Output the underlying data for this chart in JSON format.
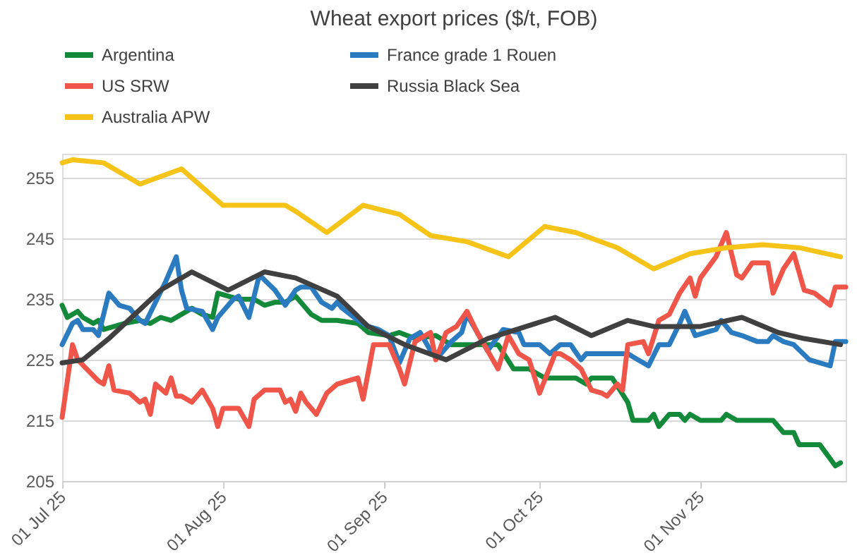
{
  "chart_data": {
    "type": "line",
    "title": "Wheat export prices ($/t, FOB)",
    "legend": "top",
    "grid": "y",
    "marker": "none",
    "line_style": "solid",
    "xlim": [
      "2025-07-01",
      "2025-11-29"
    ],
    "xticks": [
      {
        "value": "2025-07-01",
        "label": "01 Jul 25"
      },
      {
        "value": "2025-08-01",
        "label": "01 Aug 25"
      },
      {
        "value": "2025-09-01",
        "label": "01 Sep 25"
      },
      {
        "value": "2025-10-01",
        "label": "01 Oct 25"
      },
      {
        "value": "2025-11-01",
        "label": "01 Nov 25"
      }
    ],
    "ylim": [
      205,
      259
    ],
    "yticks": [
      205,
      215,
      225,
      235,
      245,
      255
    ],
    "series": [
      {
        "name": "Argentina",
        "color": "#13893a",
        "x": [
          "2025-07-01",
          "2025-07-02",
          "2025-07-03",
          "2025-07-04",
          "2025-07-05",
          "2025-07-07",
          "2025-07-08",
          "2025-07-09",
          "2025-07-11",
          "2025-07-13",
          "2025-07-16",
          "2025-07-18",
          "2025-07-20",
          "2025-07-22",
          "2025-07-23",
          "2025-07-26",
          "2025-07-28",
          "2025-07-30",
          "2025-07-31",
          "2025-08-02",
          "2025-08-04",
          "2025-08-07",
          "2025-08-09",
          "2025-08-11",
          "2025-08-13",
          "2025-08-15",
          "2025-08-18",
          "2025-08-20",
          "2025-08-23",
          "2025-08-27",
          "2025-08-29",
          "2025-09-02",
          "2025-09-04",
          "2025-09-07",
          "2025-09-11",
          "2025-09-14",
          "2025-09-16",
          "2025-09-17",
          "2025-09-20",
          "2025-09-23",
          "2025-09-26",
          "2025-09-29",
          "2025-10-02",
          "2025-10-06",
          "2025-10-08",
          "2025-10-10",
          "2025-10-11",
          "2025-10-15",
          "2025-10-18",
          "2025-10-19",
          "2025-10-22",
          "2025-10-23",
          "2025-10-24",
          "2025-10-26",
          "2025-10-28",
          "2025-10-29",
          "2025-10-30",
          "2025-11-01",
          "2025-11-05",
          "2025-11-06",
          "2025-11-08",
          "2025-11-15",
          "2025-11-17",
          "2025-11-19",
          "2025-11-20",
          "2025-11-24",
          "2025-11-27",
          "2025-11-28"
        ],
        "values": [
          234,
          232,
          232.5,
          233,
          232,
          231,
          231.5,
          230,
          230.5,
          231,
          231.5,
          231,
          232,
          231.5,
          232,
          233.5,
          232.5,
          232,
          236,
          235.5,
          235,
          235,
          234,
          234.5,
          234.5,
          235.5,
          232.5,
          231.5,
          231.5,
          231,
          229.5,
          229,
          229.5,
          228.5,
          229,
          227.5,
          227.5,
          227.5,
          227.5,
          227.5,
          223.5,
          223.5,
          222,
          222,
          222,
          221,
          222,
          222,
          218,
          215,
          215,
          216,
          214,
          216,
          216,
          215,
          216,
          215,
          215,
          216,
          215,
          215,
          213,
          213,
          211,
          211,
          207.5,
          208
        ]
      },
      {
        "name": "France grade 1 Rouen",
        "color": "#2b7bc0",
        "x": [
          "2025-07-01",
          "2025-07-03",
          "2025-07-04",
          "2025-07-05",
          "2025-07-07",
          "2025-07-08",
          "2025-07-10",
          "2025-07-12",
          "2025-07-14",
          "2025-07-16",
          "2025-07-17",
          "2025-07-19",
          "2025-07-21",
          "2025-07-23",
          "2025-07-24",
          "2025-07-25",
          "2025-07-28",
          "2025-07-30",
          "2025-07-31",
          "2025-08-03",
          "2025-08-04",
          "2025-08-06",
          "2025-08-08",
          "2025-08-11",
          "2025-08-13",
          "2025-08-15",
          "2025-08-16",
          "2025-08-18",
          "2025-08-20",
          "2025-08-22",
          "2025-08-23",
          "2025-08-24",
          "2025-08-27",
          "2025-08-29",
          "2025-08-31",
          "2025-09-02",
          "2025-09-04",
          "2025-09-06",
          "2025-09-08",
          "2025-09-10",
          "2025-09-12",
          "2025-09-14",
          "2025-09-16",
          "2025-09-17",
          "2025-09-19",
          "2025-09-21",
          "2025-09-24",
          "2025-09-27",
          "2025-09-28",
          "2025-10-01",
          "2025-10-03",
          "2025-10-05",
          "2025-10-07",
          "2025-10-09",
          "2025-10-10",
          "2025-10-14",
          "2025-10-18",
          "2025-10-20",
          "2025-10-22",
          "2025-10-24",
          "2025-10-26",
          "2025-10-28",
          "2025-10-29",
          "2025-10-31",
          "2025-11-02",
          "2025-11-04",
          "2025-11-05",
          "2025-11-07",
          "2025-11-09",
          "2025-11-12",
          "2025-11-14",
          "2025-11-15",
          "2025-11-17",
          "2025-11-19",
          "2025-11-22",
          "2025-11-26",
          "2025-11-27",
          "2025-11-29"
        ],
        "values": [
          227.5,
          231,
          231.5,
          230,
          230,
          229,
          236,
          234,
          233.5,
          231.5,
          231,
          234.5,
          238,
          242,
          236.5,
          233.5,
          233,
          230,
          232,
          235,
          235.5,
          232,
          239,
          236.5,
          234,
          236.5,
          237,
          237,
          234.5,
          233.5,
          234.5,
          233.5,
          231.5,
          230.5,
          230,
          229,
          224.5,
          228.5,
          229.5,
          226.5,
          226,
          228,
          229.5,
          232.5,
          229.5,
          226.5,
          230,
          229.5,
          227.5,
          227.5,
          226,
          227.5,
          227.5,
          225,
          226,
          226,
          226,
          225,
          224,
          227.5,
          227.5,
          231,
          233,
          229,
          229.5,
          230,
          231.5,
          229.5,
          229,
          228,
          228,
          229,
          228,
          227.5,
          225,
          224,
          228,
          228
        ]
      },
      {
        "name": "US SRW",
        "color": "#f0554a",
        "x": [
          "2025-07-01",
          "2025-07-03",
          "2025-07-04",
          "2025-07-08",
          "2025-07-09",
          "2025-07-10",
          "2025-07-11",
          "2025-07-14",
          "2025-07-16",
          "2025-07-17",
          "2025-07-18",
          "2025-07-19",
          "2025-07-21",
          "2025-07-22",
          "2025-07-23",
          "2025-07-24",
          "2025-07-26",
          "2025-07-28",
          "2025-07-30",
          "2025-07-31",
          "2025-08-01",
          "2025-08-04",
          "2025-08-06",
          "2025-08-07",
          "2025-08-09",
          "2025-08-12",
          "2025-08-13",
          "2025-08-14",
          "2025-08-15",
          "2025-08-16",
          "2025-08-17",
          "2025-08-19",
          "2025-08-21",
          "2025-08-23",
          "2025-08-25",
          "2025-08-27",
          "2025-08-28",
          "2025-08-30",
          "2025-09-02",
          "2025-09-04",
          "2025-09-05",
          "2025-09-07",
          "2025-09-09",
          "2025-09-10",
          "2025-09-11",
          "2025-09-13",
          "2025-09-15",
          "2025-09-17",
          "2025-09-19",
          "2025-09-21",
          "2025-09-23",
          "2025-09-25",
          "2025-09-27",
          "2025-09-29",
          "2025-10-01",
          "2025-10-04",
          "2025-10-05",
          "2025-10-07",
          "2025-10-09",
          "2025-10-11",
          "2025-10-13",
          "2025-10-14",
          "2025-10-16",
          "2025-10-17",
          "2025-10-18",
          "2025-10-21",
          "2025-10-22",
          "2025-10-24",
          "2025-10-26",
          "2025-10-28",
          "2025-10-30",
          "2025-10-31",
          "2025-11-01",
          "2025-11-04",
          "2025-11-06",
          "2025-11-08",
          "2025-11-09",
          "2025-11-11",
          "2025-11-14",
          "2025-11-15",
          "2025-11-17",
          "2025-11-19",
          "2025-11-21",
          "2025-11-23",
          "2025-11-26",
          "2025-11-27",
          "2025-11-29"
        ],
        "values": [
          215.5,
          227.5,
          225,
          221.5,
          221,
          224,
          220,
          219.5,
          218,
          218.5,
          216,
          221,
          219.5,
          222,
          219,
          219,
          218,
          220,
          217,
          214,
          217,
          217,
          214,
          218.5,
          220,
          220,
          218,
          218.5,
          216.5,
          219.5,
          218,
          216,
          219.5,
          221,
          221.5,
          222,
          218.5,
          227.5,
          227.5,
          223.5,
          221,
          228,
          229,
          229.5,
          225,
          229.5,
          230.5,
          233,
          229.5,
          226.5,
          223.5,
          229,
          226,
          225,
          219.5,
          226,
          226,
          225,
          223.5,
          220,
          219.5,
          219,
          221,
          220,
          227.5,
          228,
          226,
          231.5,
          232.5,
          236,
          238.5,
          235.5,
          238.5,
          242,
          246,
          239,
          238.5,
          241,
          241,
          236,
          240,
          242.5,
          236.5,
          236,
          234,
          237,
          237
        ]
      },
      {
        "name": "Russia Black Sea",
        "color": "#404040",
        "x": [
          "2025-07-01",
          "2025-07-05",
          "2025-07-10",
          "2025-07-20",
          "2025-07-26",
          "2025-08-02",
          "2025-08-09",
          "2025-08-15",
          "2025-08-23",
          "2025-08-29",
          "2025-09-05",
          "2025-09-13",
          "2025-09-21",
          "2025-10-04",
          "2025-10-11",
          "2025-10-18",
          "2025-10-23",
          "2025-11-01",
          "2025-11-09",
          "2025-11-16",
          "2025-11-21",
          "2025-11-28"
        ],
        "values": [
          224.5,
          225,
          228.5,
          236.5,
          239.5,
          236.5,
          239.5,
          238.5,
          235.5,
          230.5,
          227.5,
          225,
          228.5,
          232,
          229,
          231.5,
          230.5,
          230.5,
          232,
          229.5,
          228.5,
          227.5
        ]
      },
      {
        "name": "Australia APW",
        "color": "#f6c419",
        "x": [
          "2025-07-01",
          "2025-07-03",
          "2025-07-09",
          "2025-07-16",
          "2025-07-24",
          "2025-08-01",
          "2025-08-13",
          "2025-08-15",
          "2025-08-21",
          "2025-08-28",
          "2025-09-04",
          "2025-09-10",
          "2025-09-17",
          "2025-09-25",
          "2025-10-02",
          "2025-10-08",
          "2025-10-16",
          "2025-10-23",
          "2025-10-30",
          "2025-11-06",
          "2025-11-13",
          "2025-11-20",
          "2025-11-28"
        ],
        "values": [
          257.5,
          258,
          257.5,
          254,
          256.5,
          250.5,
          250.5,
          249.5,
          246,
          250.5,
          249,
          245.5,
          244.5,
          242,
          247,
          246,
          243.5,
          240,
          242.5,
          243.5,
          244,
          243.5,
          242
        ]
      }
    ]
  }
}
